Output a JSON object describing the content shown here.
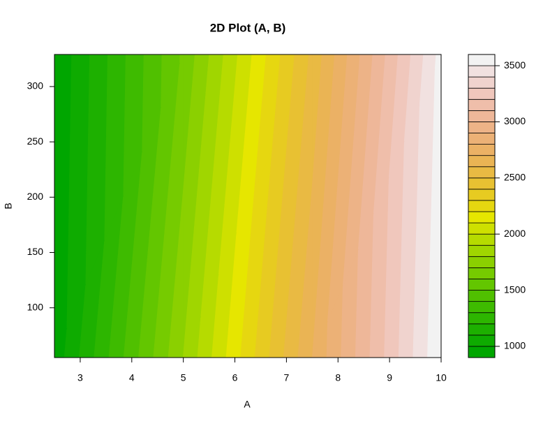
{
  "chart_data": {
    "type": "filled-contour",
    "title": "2D Plot (A, B)",
    "xlabel": "A",
    "ylabel": "B",
    "x": [
      2.5,
      5,
      7.5,
      10
    ],
    "y": [
      55,
      329
    ],
    "z": [
      [
        934,
        1802,
        2700,
        3595
      ],
      [
        905,
        1619,
        2524,
        3540
      ]
    ],
    "levels": [
      900,
      1000,
      1100,
      1200,
      1300,
      1400,
      1500,
      1600,
      1700,
      1800,
      1900,
      2000,
      2100,
      2200,
      2300,
      2400,
      2500,
      2600,
      2700,
      2800,
      2900,
      3000,
      3100,
      3200,
      3300,
      3400,
      3500,
      3600
    ],
    "palette": "terrain.colors",
    "xlim": [
      2.5,
      10
    ],
    "ylim": [
      55,
      329
    ],
    "xticks": [
      3,
      4,
      5,
      6,
      7,
      8,
      9,
      10
    ],
    "yticks": [
      100,
      150,
      200,
      250,
      300
    ],
    "zticks": [
      1000,
      1500,
      2000,
      2500,
      3000,
      3500
    ]
  }
}
